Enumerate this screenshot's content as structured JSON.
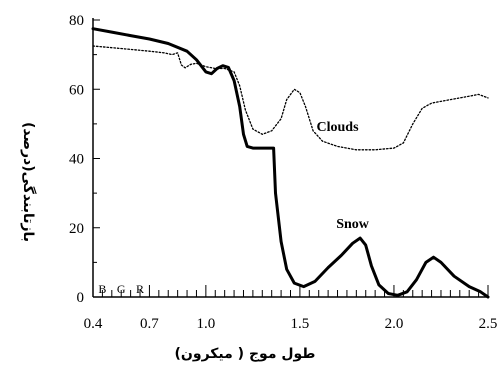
{
  "chart_data": {
    "type": "line",
    "xlabel": "طول موج ( میکرون)",
    "ylabel": "بازتابندگی(درصد)",
    "xlim": [
      0.4,
      2.5
    ],
    "ylim": [
      0,
      80
    ],
    "grid": false,
    "x_ticks": [
      {
        "value": 0.4,
        "label": "0.4"
      },
      {
        "value": 0.7,
        "label": "0.7"
      },
      {
        "value": 1.0,
        "label": "1.0"
      },
      {
        "value": 1.5,
        "label": "1.5"
      },
      {
        "value": 2.0,
        "label": "2.0"
      },
      {
        "value": 2.5,
        "label": "2.5"
      }
    ],
    "y_ticks": [
      {
        "value": 0,
        "label": "0"
      },
      {
        "value": 20,
        "label": "20"
      },
      {
        "value": 40,
        "label": "40"
      },
      {
        "value": 60,
        "label": "60"
      },
      {
        "value": 80,
        "label": "80"
      }
    ],
    "band_labels": [
      {
        "label": "B",
        "x": 0.45
      },
      {
        "label": "G",
        "x": 0.55
      },
      {
        "label": "R",
        "x": 0.65
      }
    ],
    "series": [
      {
        "name": "Snow",
        "style": "solid-thick",
        "label_at": {
          "x": 1.78,
          "y": 20
        },
        "points": [
          [
            0.4,
            77.5
          ],
          [
            0.5,
            76.5
          ],
          [
            0.6,
            75.5
          ],
          [
            0.7,
            74.5
          ],
          [
            0.8,
            73.2
          ],
          [
            0.9,
            71.0
          ],
          [
            0.95,
            68.5
          ],
          [
            1.0,
            65.0
          ],
          [
            1.03,
            64.5
          ],
          [
            1.06,
            66.0
          ],
          [
            1.09,
            66.8
          ],
          [
            1.12,
            66.3
          ],
          [
            1.15,
            62.5
          ],
          [
            1.18,
            55.0
          ],
          [
            1.2,
            47.0
          ],
          [
            1.22,
            43.5
          ],
          [
            1.25,
            43.0
          ],
          [
            1.3,
            43.0
          ],
          [
            1.36,
            43.0
          ],
          [
            1.37,
            30.0
          ],
          [
            1.4,
            16.0
          ],
          [
            1.43,
            8.0
          ],
          [
            1.47,
            4.0
          ],
          [
            1.52,
            3.0
          ],
          [
            1.58,
            4.5
          ],
          [
            1.65,
            8.5
          ],
          [
            1.72,
            12.0
          ],
          [
            1.78,
            15.5
          ],
          [
            1.82,
            17.0
          ],
          [
            1.85,
            15.0
          ],
          [
            1.88,
            9.0
          ],
          [
            1.92,
            3.5
          ],
          [
            1.97,
            1.0
          ],
          [
            2.02,
            0.5
          ],
          [
            2.07,
            1.5
          ],
          [
            2.12,
            5.0
          ],
          [
            2.17,
            10.0
          ],
          [
            2.21,
            11.5
          ],
          [
            2.25,
            10.0
          ],
          [
            2.32,
            6.0
          ],
          [
            2.4,
            3.0
          ],
          [
            2.46,
            1.5
          ],
          [
            2.5,
            0.0
          ]
        ]
      },
      {
        "name": "Clouds",
        "style": "dotted",
        "label_at": {
          "x": 1.7,
          "y": 48
        },
        "points": [
          [
            0.4,
            72.5
          ],
          [
            0.5,
            72.0
          ],
          [
            0.6,
            71.5
          ],
          [
            0.7,
            71.0
          ],
          [
            0.78,
            70.5
          ],
          [
            0.82,
            70.0
          ],
          [
            0.85,
            70.5
          ],
          [
            0.87,
            67.0
          ],
          [
            0.89,
            66.2
          ],
          [
            0.92,
            67.2
          ],
          [
            0.95,
            67.5
          ],
          [
            1.0,
            66.5
          ],
          [
            1.05,
            66.0
          ],
          [
            1.1,
            66.0
          ],
          [
            1.15,
            65.0
          ],
          [
            1.18,
            61.0
          ],
          [
            1.21,
            54.0
          ],
          [
            1.25,
            48.5
          ],
          [
            1.3,
            47.0
          ],
          [
            1.35,
            48.0
          ],
          [
            1.4,
            51.5
          ],
          [
            1.43,
            57.0
          ],
          [
            1.47,
            60.0
          ],
          [
            1.5,
            59.0
          ],
          [
            1.53,
            55.0
          ],
          [
            1.57,
            48.0
          ],
          [
            1.62,
            45.0
          ],
          [
            1.7,
            43.5
          ],
          [
            1.8,
            42.5
          ],
          [
            1.9,
            42.5
          ],
          [
            2.0,
            43.0
          ],
          [
            2.05,
            44.5
          ],
          [
            2.1,
            50.0
          ],
          [
            2.15,
            54.5
          ],
          [
            2.2,
            56.0
          ],
          [
            2.3,
            57.0
          ],
          [
            2.4,
            58.0
          ],
          [
            2.45,
            58.5
          ],
          [
            2.5,
            57.5
          ]
        ]
      }
    ]
  }
}
